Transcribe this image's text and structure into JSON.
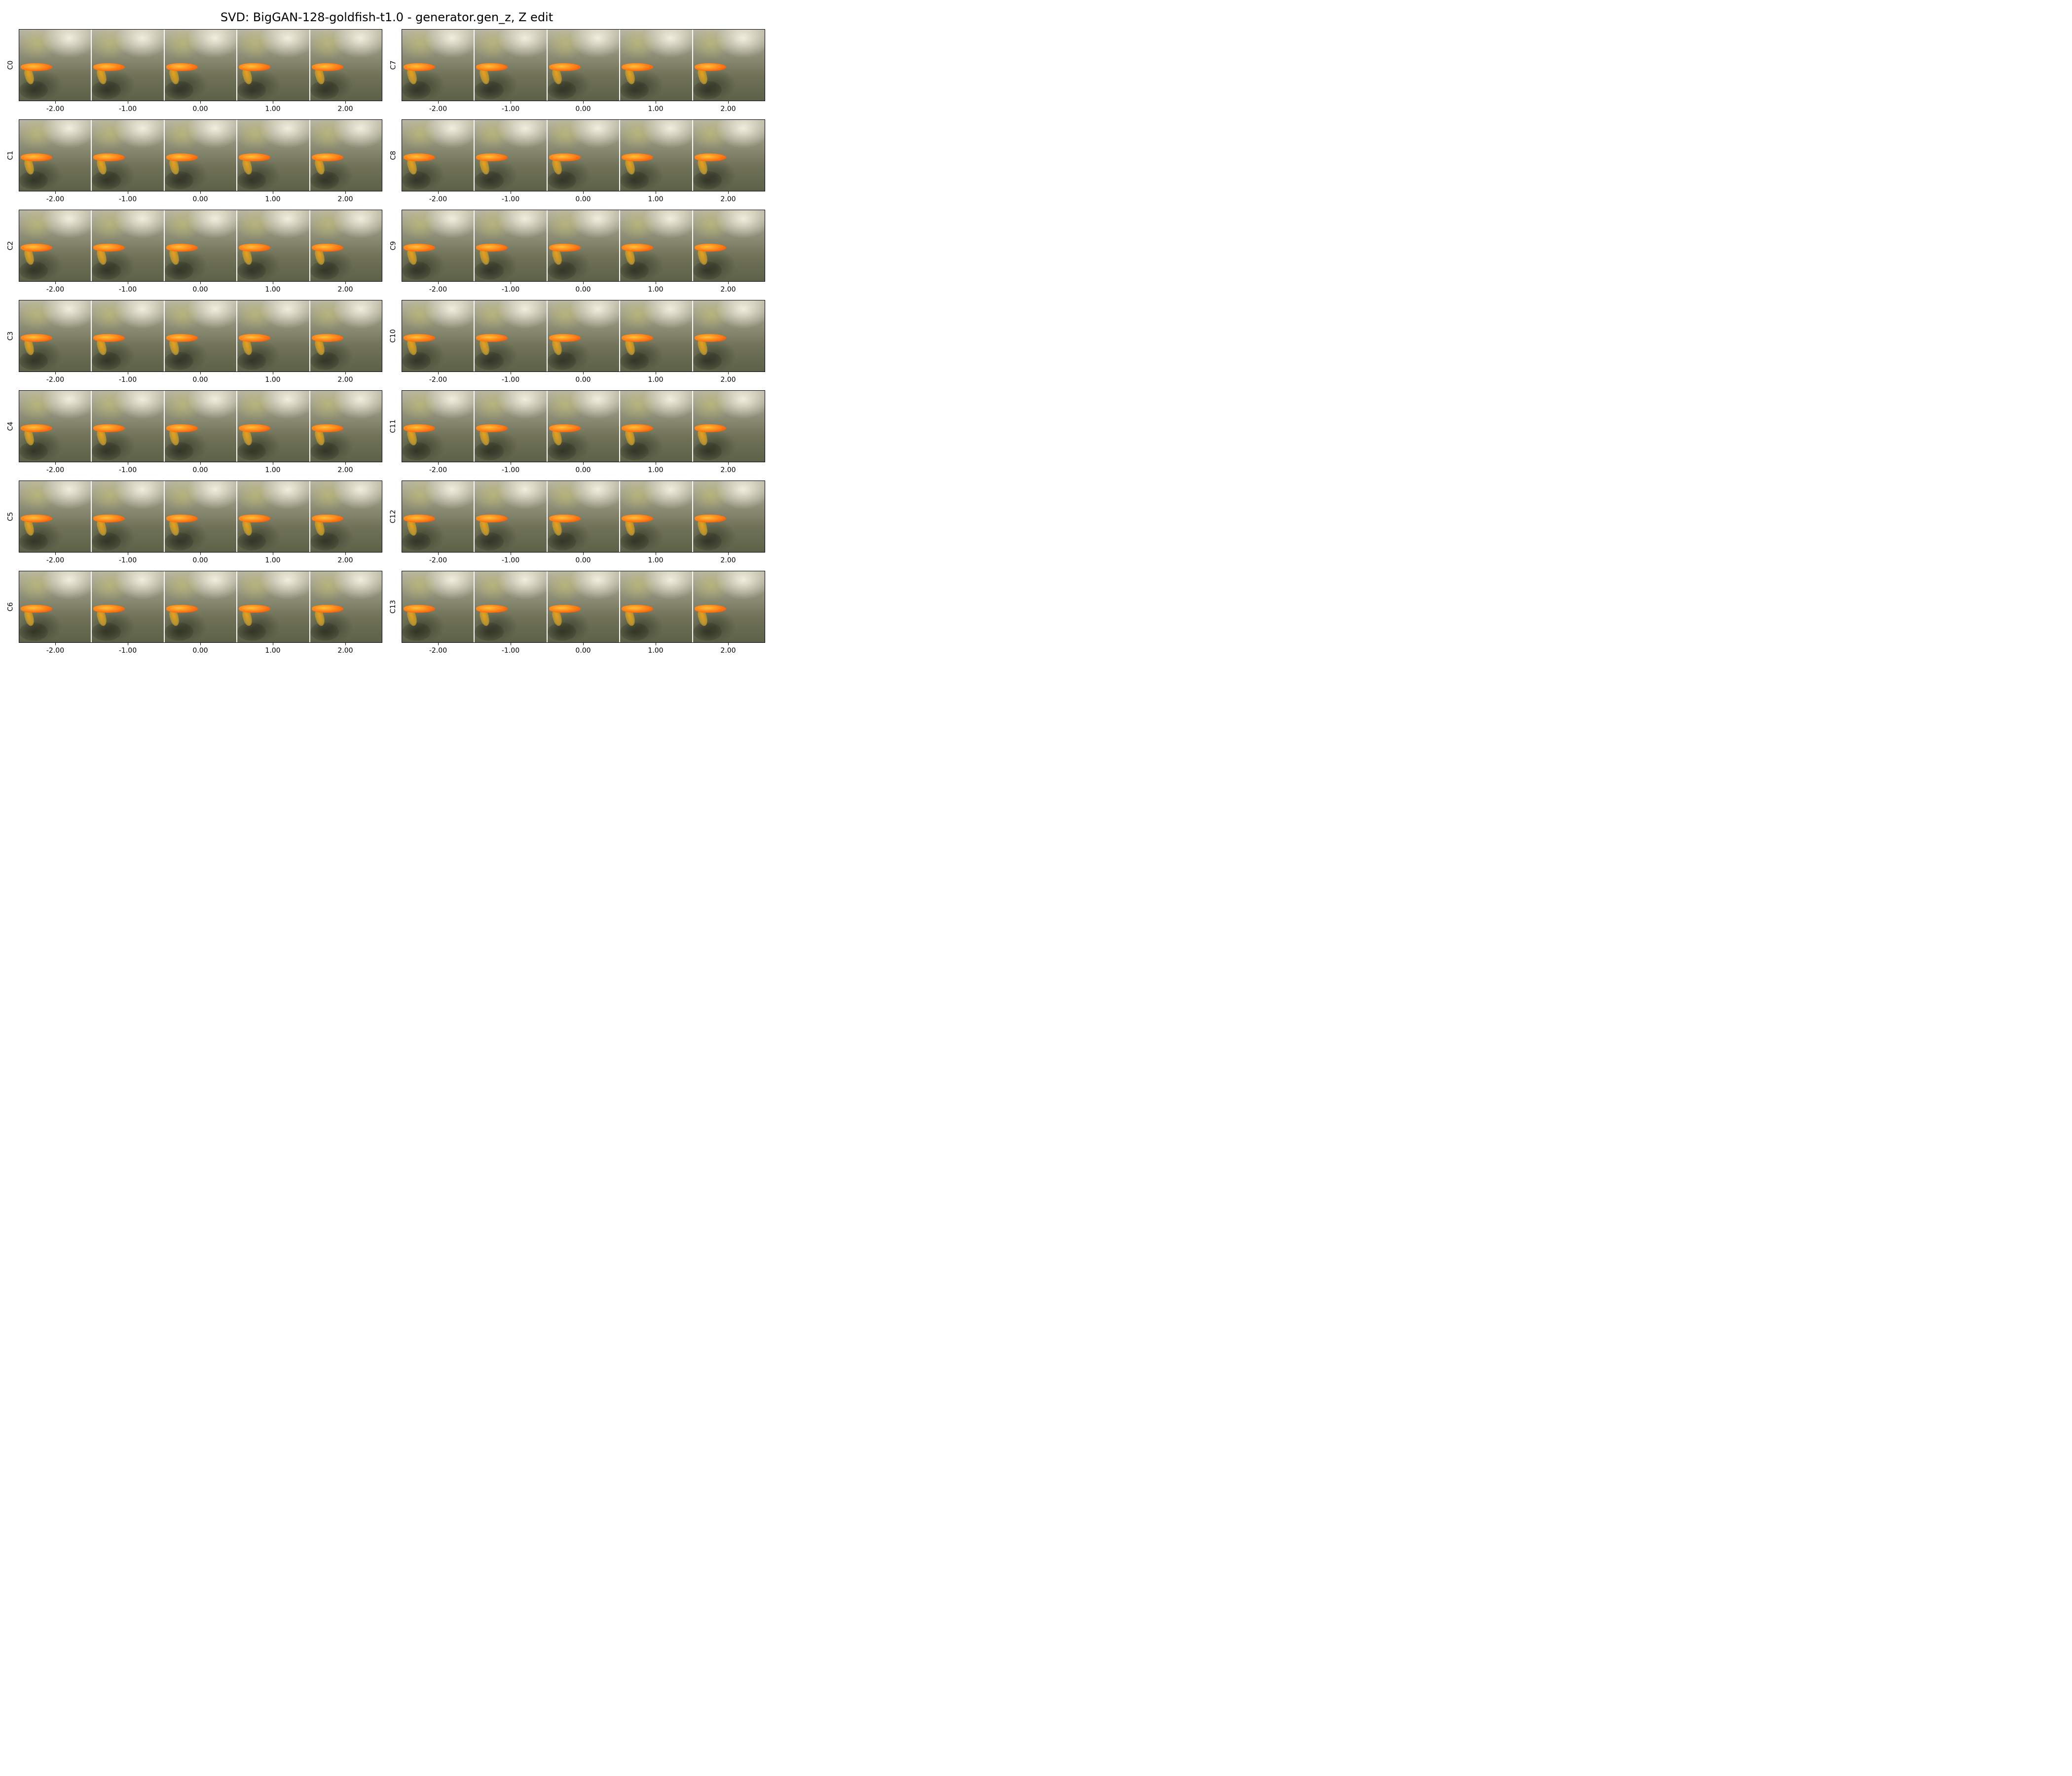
{
  "title": "SVD: BigGAN-128-goldfish-t1.0 - generator.gen_z, Z edit",
  "tick_labels": [
    "-2.00",
    "-1.00",
    "0.00",
    "1.00",
    "2.00"
  ],
  "components": [
    "C0",
    "C1",
    "C2",
    "C3",
    "C4",
    "C5",
    "C6",
    "C7",
    "C8",
    "C9",
    "C10",
    "C11",
    "C12",
    "C13"
  ],
  "image_content": "goldfish-underwater-sample"
}
